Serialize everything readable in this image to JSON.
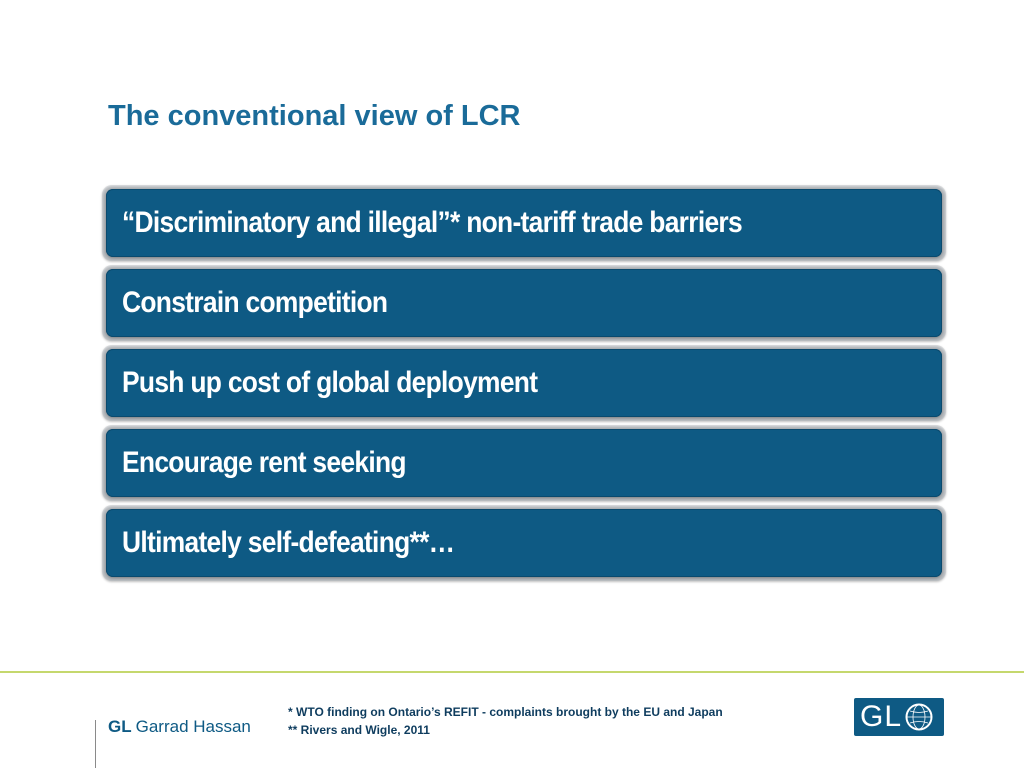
{
  "slide": {
    "title": "The conventional view of LCR"
  },
  "points": [
    "“Discriminatory and illegal”* non-tariff trade barriers",
    "Constrain competition",
    "Push up cost of global deployment",
    "Encourage rent seeking",
    "Ultimately self-defeating**…"
  ],
  "footer": {
    "brand_gl": "GL",
    "brand_name": "Garrad Hassan",
    "footnotes": [
      "* WTO finding on Ontario’s REFIT - complaints brought by the EU and Japan",
      "** Rivers and Wigle, 2011"
    ],
    "logo_text": "GL",
    "logo_icon": "globe-icon"
  },
  "colors": {
    "title": "#1a6b99",
    "box_fill": "#0e5a84",
    "box_border": "#b8bcc0",
    "divider": "#c5d86d",
    "logo_bg": "#0e5a84"
  }
}
